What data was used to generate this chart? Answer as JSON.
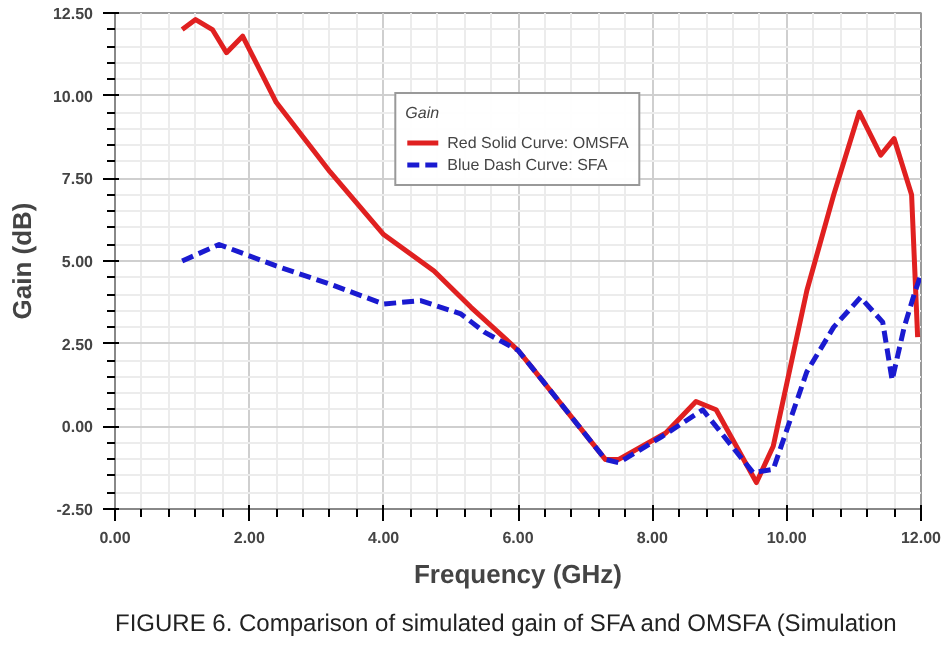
{
  "chart_data": {
    "type": "line",
    "xlabel": "Frequency (GHz)",
    "ylabel": "Gain (dB)",
    "legend_title": "Gain",
    "annotations": [
      "FIGURE 6. Comparison of simulated gain of SFA and OMSFA (Simulation"
    ],
    "series": [
      {
        "name": "Red Solid Curve: OMSFA",
        "color": "#e02020",
        "line_style": "solid",
        "x": [
          1.0,
          1.2,
          1.45,
          1.66,
          1.9,
          2.4,
          3.2,
          4.0,
          4.75,
          5.3,
          6.0,
          6.2,
          7.3,
          7.5,
          8.2,
          8.65,
          8.95,
          9.55,
          9.8,
          10.3,
          10.7,
          11.08,
          11.4,
          11.6,
          11.86,
          11.95
        ],
        "values": [
          12.0,
          12.3,
          12.0,
          11.3,
          11.8,
          9.8,
          7.7,
          5.8,
          4.7,
          3.6,
          2.3,
          1.8,
          -1.0,
          -1.0,
          -0.2,
          0.75,
          0.5,
          -1.7,
          -0.6,
          4.1,
          7.0,
          9.5,
          8.2,
          8.7,
          7.0,
          2.7
        ]
      },
      {
        "name": "Blue Dash Curve: SFA",
        "color": "#1a1ad0",
        "line_style": "dashed",
        "x": [
          1.0,
          1.55,
          2.4,
          3.2,
          4.0,
          4.55,
          5.15,
          5.5,
          6.0,
          6.2,
          7.3,
          7.5,
          8.15,
          8.75,
          9.5,
          9.8,
          10.3,
          10.7,
          11.1,
          11.43,
          11.57,
          11.75,
          11.9,
          12.0
        ],
        "values": [
          5.0,
          5.5,
          4.85,
          4.3,
          3.7,
          3.8,
          3.4,
          2.85,
          2.3,
          1.8,
          -1.0,
          -1.1,
          -0.3,
          0.5,
          -1.4,
          -1.3,
          1.65,
          3.0,
          3.9,
          3.15,
          1.4,
          3.0,
          4.0,
          4.6
        ]
      }
    ],
    "xlim": [
      0,
      12
    ],
    "ylim": [
      -2.5,
      12.5
    ],
    "xticks": [
      {
        "value": 0,
        "label": "0.00"
      },
      {
        "value": 2,
        "label": "2.00"
      },
      {
        "value": 4,
        "label": "4.00"
      },
      {
        "value": 6,
        "label": "6.00"
      },
      {
        "value": 8,
        "label": "8.00"
      },
      {
        "value": 10,
        "label": "10.00"
      },
      {
        "value": 12,
        "label": "12.00"
      }
    ],
    "yticks": [
      {
        "value": -2.5,
        "label": "-2.50"
      },
      {
        "value": 0,
        "label": "0.00"
      },
      {
        "value": 2.5,
        "label": "2.50"
      },
      {
        "value": 5,
        "label": "5.00"
      },
      {
        "value": 7.5,
        "label": "7.50"
      },
      {
        "value": 10,
        "label": "10.00"
      },
      {
        "value": 12.5,
        "label": "12.50"
      }
    ],
    "grid": true,
    "legend": "top",
    "marker": "none"
  }
}
